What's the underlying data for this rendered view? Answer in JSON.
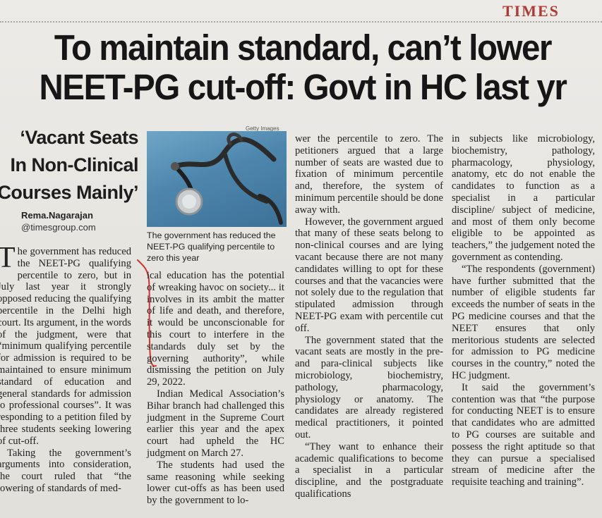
{
  "masthead": "TIMES",
  "headline": {
    "line1": "To maintain standard, can’t lower",
    "line2": "NEET-PG cut-off: Govt in HC last yr"
  },
  "kicker": {
    "line1": "‘Vacant Seats",
    "line2": "In Non-Clinical",
    "line3": "Courses Mainly’"
  },
  "byline": {
    "name": "Rema.Nagarajan",
    "handle": "@timesgroup.com"
  },
  "photo": {
    "credit": "Getty Images",
    "caption": "The government has reduced the NEET-PG qualifying percentile to zero this year",
    "icon": "stethoscope-icon"
  },
  "article": {
    "col1": {
      "dropcap": "T",
      "p1": "he government has reduced the NEET-PG qualifying percentile to zero, but in July last year it strongly opposed reducing the qualifying percentile in the Delhi high court. Its argument, in the words of the judgment, were that “minimum qualifying percentile for admission is required to be maintained to ensure minimum standard of education and general standards for admission to professional courses”. It was responding to a petition filed by three students seeking lowering of cut-off.",
      "p2": "Taking the government’s arguments into consideration, the court ruled that “the lowering of standards of med-"
    },
    "col2": {
      "p1": "ical education has the potential of wreaking havoc on society... it involves in its ambit the matter of life and death, and therefore, it would be unconscionable for this court to interfere in the standards duly set by the governing authority”, while dismissing the petition on July 29, 2022.",
      "p2": "Indian Medical Association’s Bihar branch had challenged this judgment in the Supreme Court earlier this year and the apex court had upheld the HC judgment on March 27.",
      "p3": "The students had used the same reasoning while seeking lower cut-offs as has been used by the government to lo-"
    },
    "col3": {
      "p1": "wer the percentile to zero. The petitioners argued that a large number of seats are wasted due to fixation of minimum percentile and, therefore, the system of minimum percentile should be done away with.",
      "p2": "However, the government argued that many of these seats belong to non-clinical courses and are lying vacant because there are not many candidates willing to opt for these courses and that the vacancies were not solely due to the regulation that stipulated admission through NEET-PG exam with percentile cut off.",
      "p3": "The government stated that the vacant seats are mostly in the pre- and para-clinical subjects like microbiology, biochemistry, pathology, pharmacology, physiology or anatomy. The candidates are already registered medical practitioners, it pointed out.",
      "p4": "“They want to enhance their academic qualifications to become a specialist in a particular discipline, and the postgraduate qualifications"
    },
    "col4": {
      "p1": "in subjects like microbiology, biochemistry, pathology, pharmacology, physiology, anatomy, etc do not enable the candidates to function as a specialist in a particular discipline/ subject of medicine, and most of them only become eligible to be appointed as teachers,” the judgement noted the government as contending.",
      "p2": "“The respondents (government) have further submitted that the number of eligible students far exceeds the number of seats in the PG medicine courses and that the NEET ensures that only meritorious students are selected for admission to PG medicine courses in the country,” noted the HC judgment.",
      "p3": "It said the government’s contention was that “the purpose for conducting NEET is to ensure that candidates who are admitted to PG courses are suitable and possess the right aptitude so that they can pursue a specialised stream of medicine after the requisite teaching and training”."
    }
  },
  "colors": {
    "masthead": "#b23a35",
    "pen_mark": "#d0342c",
    "photo_bg": "#4d86ad"
  }
}
